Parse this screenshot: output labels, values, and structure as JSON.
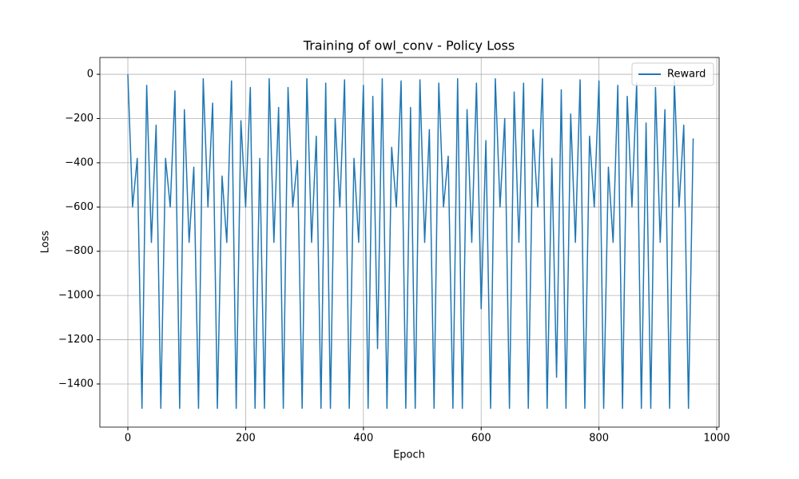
{
  "chart_data": {
    "type": "line",
    "title": "Training of owl_conv - Policy Loss",
    "xlabel": "Epoch",
    "ylabel": "Loss",
    "x": [
      0,
      8,
      16,
      24,
      32,
      40,
      48,
      56,
      64,
      72,
      80,
      88,
      96,
      104,
      112,
      120,
      128,
      136,
      144,
      152,
      160,
      168,
      176,
      184,
      192,
      200,
      208,
      216,
      224,
      232,
      240,
      248,
      256,
      264,
      272,
      280,
      288,
      296,
      304,
      312,
      320,
      328,
      336,
      344,
      352,
      360,
      368,
      376,
      384,
      392,
      400,
      408,
      416,
      424,
      432,
      440,
      448,
      456,
      464,
      472,
      480,
      488,
      496,
      504,
      512,
      520,
      528,
      536,
      544,
      552,
      560,
      568,
      576,
      584,
      592,
      600,
      608,
      616,
      624,
      632,
      640,
      648,
      656,
      664,
      672,
      680,
      688,
      696,
      704,
      712,
      720,
      728,
      736,
      744,
      752,
      760,
      768,
      776,
      784,
      792,
      800,
      808,
      816,
      824,
      832,
      840,
      848,
      856,
      864,
      872,
      880,
      888,
      896,
      904,
      912,
      920,
      928,
      936,
      944,
      952,
      960
    ],
    "series": [
      {
        "name": "Reward",
        "color": "#1f77b4",
        "values": [
          0,
          -600,
          -380,
          -1510,
          -50,
          -760,
          -230,
          -1510,
          -380,
          -600,
          -75,
          -1510,
          -160,
          -760,
          -420,
          -1510,
          -20,
          -600,
          -130,
          -1510,
          -460,
          -760,
          -30,
          -1510,
          -210,
          -600,
          -60,
          -1510,
          -380,
          -1510,
          -20,
          -760,
          -150,
          -1510,
          -60,
          -600,
          -390,
          -1510,
          -20,
          -760,
          -280,
          -1510,
          -40,
          -1510,
          -200,
          -600,
          -25,
          -1510,
          -380,
          -760,
          -50,
          -1510,
          -100,
          -1240,
          -20,
          -1510,
          -330,
          -600,
          -30,
          -1510,
          -150,
          -1510,
          -25,
          -760,
          -250,
          -1510,
          -40,
          -600,
          -370,
          -1510,
          -20,
          -1510,
          -160,
          -760,
          -40,
          -1060,
          -300,
          -1510,
          -20,
          -600,
          -200,
          -1510,
          -80,
          -760,
          -40,
          -1510,
          -250,
          -600,
          -20,
          -1510,
          -380,
          -1370,
          -70,
          -1510,
          -180,
          -760,
          -25,
          -1510,
          -280,
          -600,
          -30,
          -1510,
          -420,
          -760,
          -50,
          -1510,
          -100,
          -600,
          -40,
          -1510,
          -220,
          -1510,
          -60,
          -760,
          -160,
          -1510,
          -30,
          -600,
          -230,
          -1510,
          -290
        ]
      }
    ],
    "xlim": [
      -47.5,
      1004
    ],
    "ylim": [
      -1595,
      76
    ],
    "xticks": [
      0,
      200,
      400,
      600,
      800,
      1000
    ],
    "yticks": [
      0,
      {
        "value": -200,
        "label": "−200"
      },
      {
        "value": -400,
        "label": "−400"
      },
      {
        "value": -600,
        "label": "−600"
      },
      {
        "value": -800,
        "label": "−800"
      },
      {
        "value": -1000,
        "label": "−1000"
      },
      {
        "value": -1200,
        "label": "−1200"
      },
      {
        "value": -1400,
        "label": "−1400"
      }
    ],
    "grid": true,
    "legend": "upper right"
  }
}
